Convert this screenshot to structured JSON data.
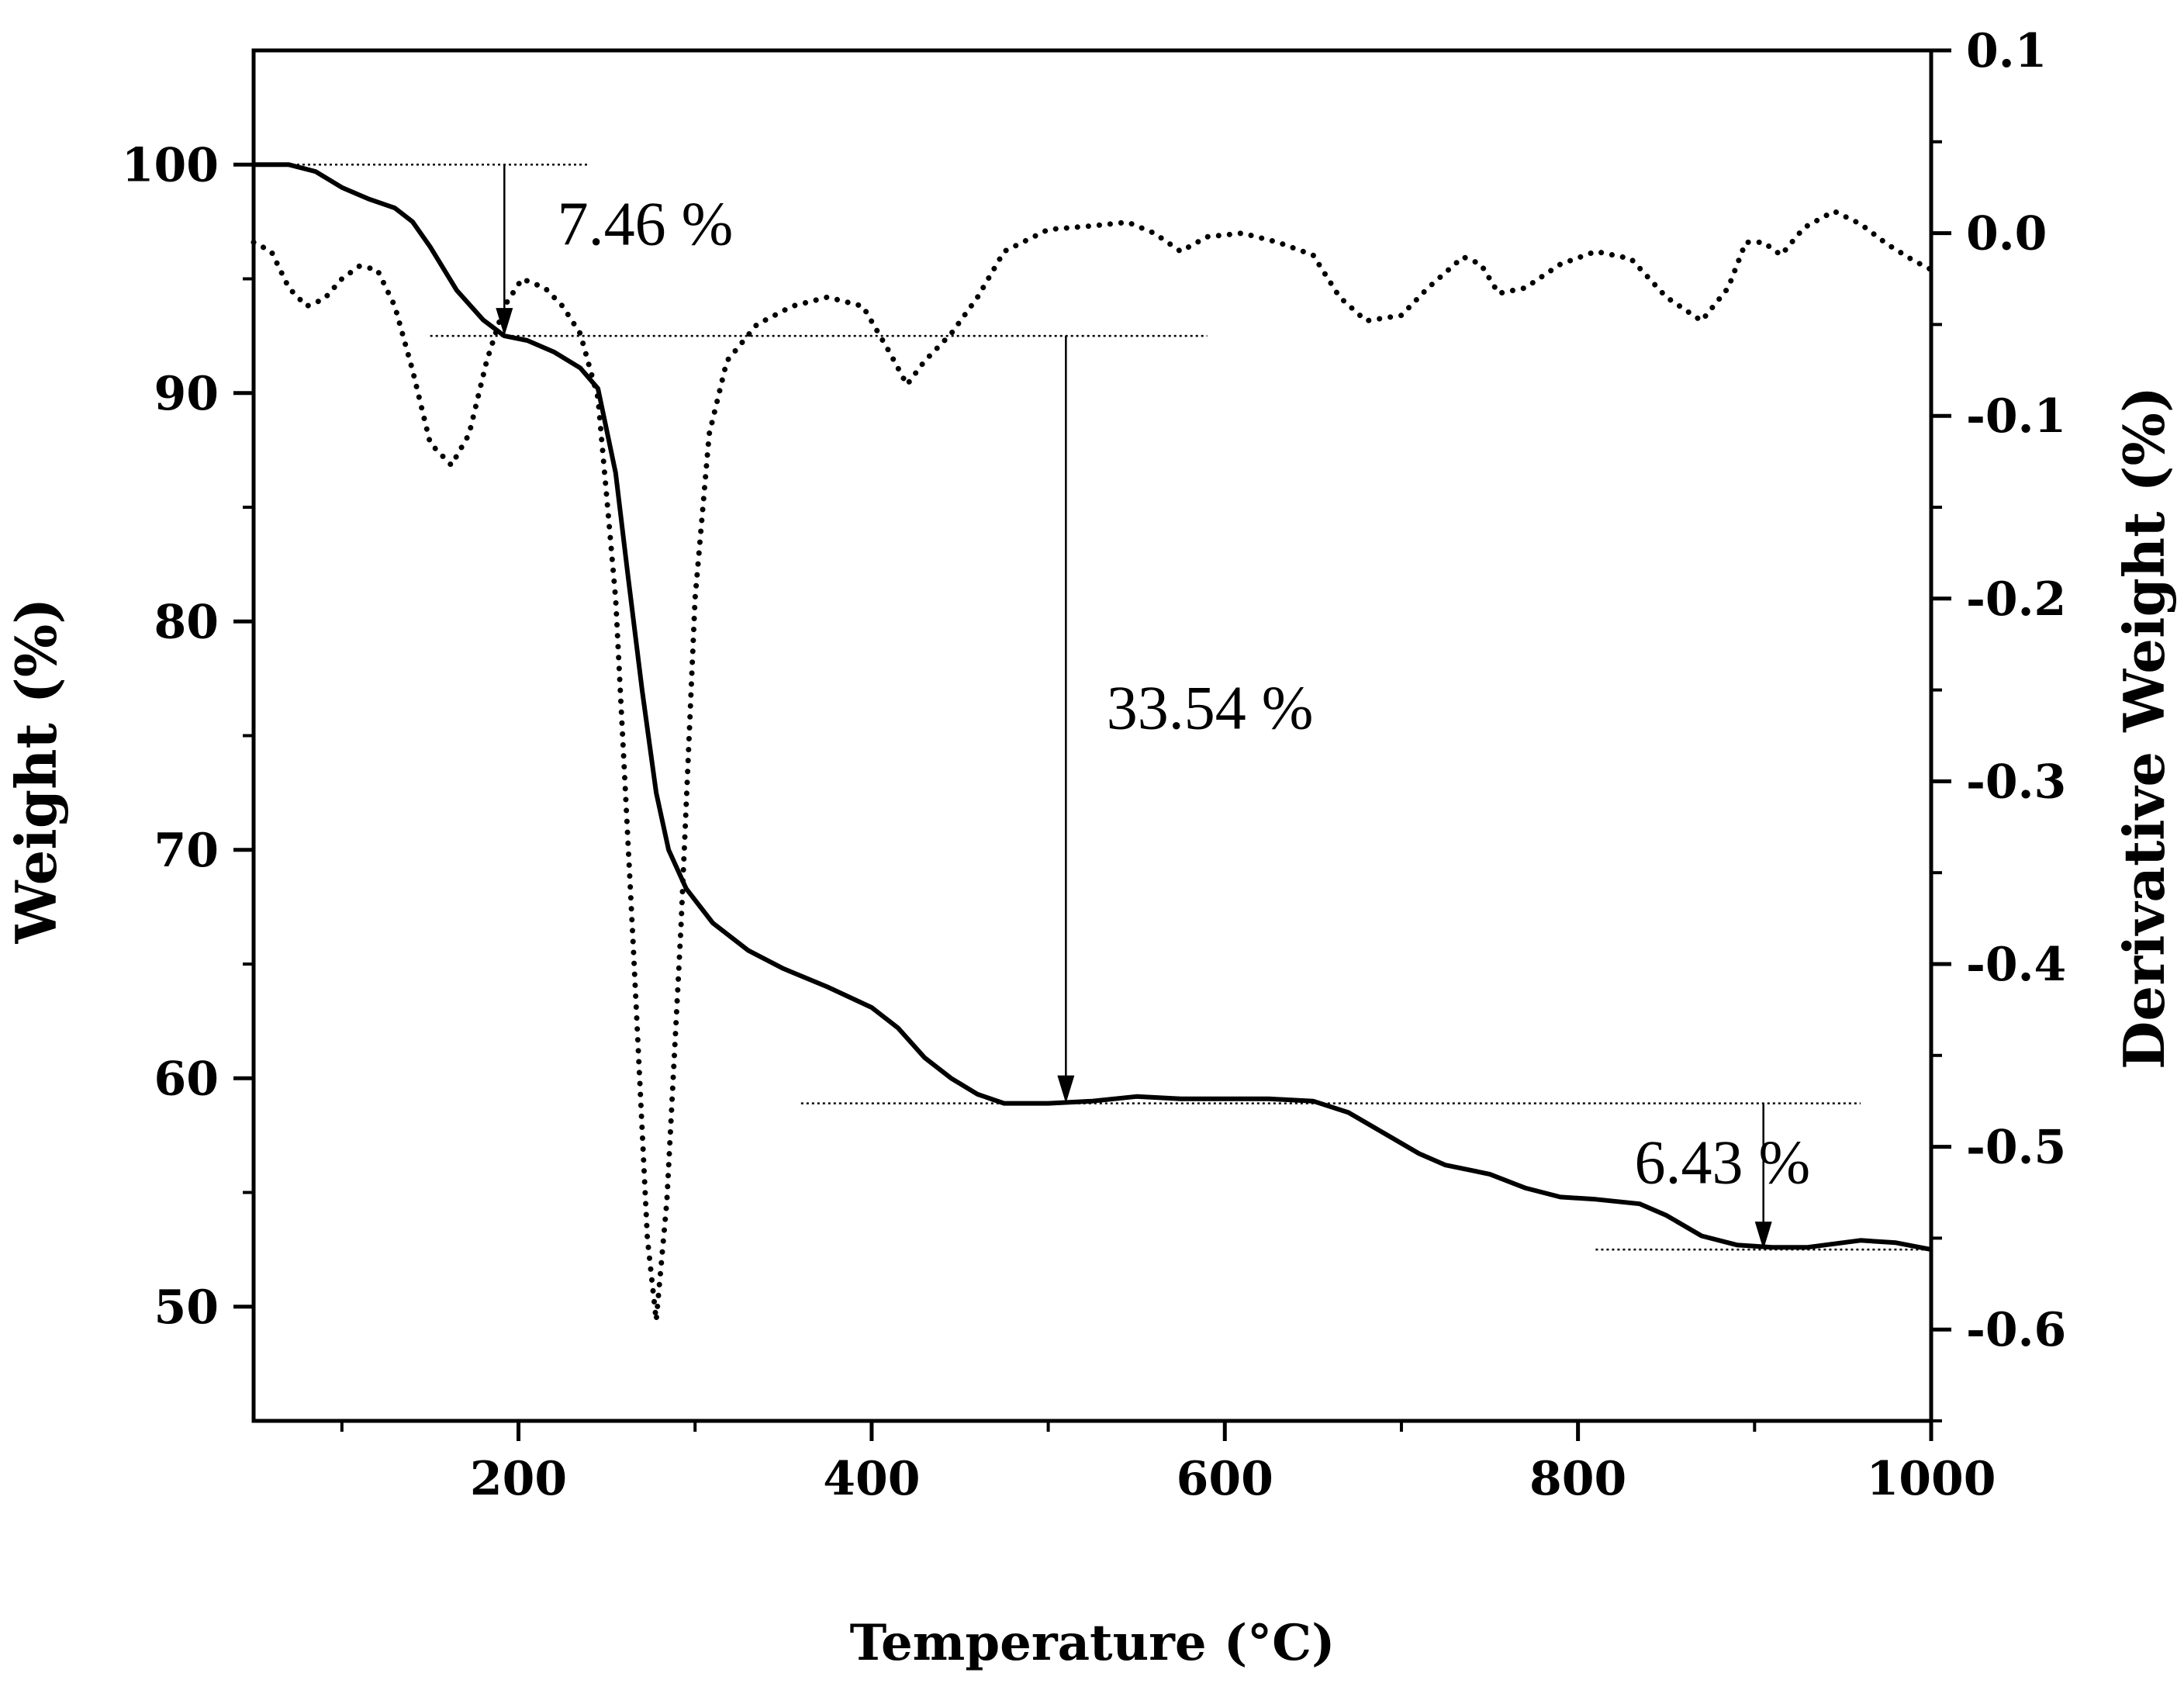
{
  "chart_data": {
    "type": "line",
    "xlabel": "Temperature (°C)",
    "ylabel": "Weight (%)",
    "y2label": "Derivative Weight (%)",
    "xlim": [
      50,
      1000
    ],
    "ylim": [
      45,
      105
    ],
    "y2lim": [
      -0.65,
      0.1
    ],
    "x_ticks": [
      200,
      400,
      600,
      800,
      1000
    ],
    "y_ticks": [
      50,
      60,
      70,
      80,
      90,
      100
    ],
    "y2_ticks": [
      0.1,
      0.0,
      -0.1,
      -0.2,
      -0.3,
      -0.4,
      -0.5,
      -0.6
    ],
    "x_tick_labels": [
      "200",
      "400",
      "600",
      "800",
      "1000"
    ],
    "y_tick_labels": [
      "50",
      "60",
      "70",
      "80",
      "90",
      "100"
    ],
    "y2_tick_labels": [
      "0.1",
      "0.0",
      "-0.1",
      "-0.2",
      "-0.3",
      "-0.4",
      "-0.5",
      "-0.6"
    ],
    "series": [
      {
        "name": "Weight",
        "axis": "left",
        "style": "solid",
        "points": [
          [
            50,
            100
          ],
          [
            70,
            100
          ],
          [
            85,
            99.7
          ],
          [
            100,
            99
          ],
          [
            115,
            98.5
          ],
          [
            130,
            98.1
          ],
          [
            140,
            97.5
          ],
          [
            150,
            96.4
          ],
          [
            165,
            94.5
          ],
          [
            180,
            93.2
          ],
          [
            192,
            92.5
          ],
          [
            205,
            92.3
          ],
          [
            220,
            91.8
          ],
          [
            235,
            91.1
          ],
          [
            245,
            90.2
          ],
          [
            255,
            86.5
          ],
          [
            262,
            82
          ],
          [
            270,
            77
          ],
          [
            278,
            72.5
          ],
          [
            285,
            70
          ],
          [
            295,
            68.3
          ],
          [
            310,
            66.8
          ],
          [
            330,
            65.6
          ],
          [
            350,
            64.8
          ],
          [
            375,
            64
          ],
          [
            400,
            63.1
          ],
          [
            415,
            62.2
          ],
          [
            430,
            60.9
          ],
          [
            445,
            60
          ],
          [
            460,
            59.3
          ],
          [
            475,
            58.9
          ],
          [
            500,
            58.9
          ],
          [
            525,
            59
          ],
          [
            550,
            59.2
          ],
          [
            575,
            59.1
          ],
          [
            600,
            59.1
          ],
          [
            625,
            59.1
          ],
          [
            650,
            59
          ],
          [
            670,
            58.5
          ],
          [
            690,
            57.6
          ],
          [
            710,
            56.7
          ],
          [
            725,
            56.2
          ],
          [
            750,
            55.8
          ],
          [
            770,
            55.2
          ],
          [
            790,
            54.8
          ],
          [
            810,
            54.7
          ],
          [
            835,
            54.5
          ],
          [
            850,
            54
          ],
          [
            870,
            53.1
          ],
          [
            890,
            52.7
          ],
          [
            910,
            52.6
          ],
          [
            930,
            52.6
          ],
          [
            960,
            52.9
          ],
          [
            980,
            52.8
          ],
          [
            1000,
            52.5
          ]
        ]
      },
      {
        "name": "Derivative Weight",
        "axis": "right",
        "style": "dotted",
        "points": [
          [
            50,
            -0.005
          ],
          [
            60,
            -0.01
          ],
          [
            70,
            -0.03
          ],
          [
            80,
            -0.04
          ],
          [
            90,
            -0.036
          ],
          [
            100,
            -0.025
          ],
          [
            110,
            -0.018
          ],
          [
            120,
            -0.02
          ],
          [
            130,
            -0.04
          ],
          [
            140,
            -0.075
          ],
          [
            150,
            -0.115
          ],
          [
            162,
            -0.127
          ],
          [
            172,
            -0.11
          ],
          [
            182,
            -0.07
          ],
          [
            192,
            -0.04
          ],
          [
            202,
            -0.025
          ],
          [
            215,
            -0.03
          ],
          [
            225,
            -0.04
          ],
          [
            235,
            -0.055
          ],
          [
            245,
            -0.09
          ],
          [
            255,
            -0.2
          ],
          [
            265,
            -0.39
          ],
          [
            273,
            -0.55
          ],
          [
            278,
            -0.595
          ],
          [
            284,
            -0.53
          ],
          [
            292,
            -0.38
          ],
          [
            300,
            -0.2
          ],
          [
            308,
            -0.11
          ],
          [
            318,
            -0.07
          ],
          [
            335,
            -0.05
          ],
          [
            355,
            -0.04
          ],
          [
            375,
            -0.035
          ],
          [
            395,
            -0.04
          ],
          [
            410,
            -0.065
          ],
          [
            420,
            -0.083
          ],
          [
            430,
            -0.07
          ],
          [
            445,
            -0.055
          ],
          [
            460,
            -0.035
          ],
          [
            475,
            -0.01
          ],
          [
            500,
            0.002
          ],
          [
            525,
            0.004
          ],
          [
            545,
            0.006
          ],
          [
            560,
            0.0
          ],
          [
            575,
            -0.01
          ],
          [
            590,
            -0.002
          ],
          [
            610,
            0.0
          ],
          [
            630,
            -0.005
          ],
          [
            650,
            -0.012
          ],
          [
            665,
            -0.035
          ],
          [
            680,
            -0.048
          ],
          [
            700,
            -0.045
          ],
          [
            715,
            -0.03
          ],
          [
            735,
            -0.013
          ],
          [
            745,
            -0.017
          ],
          [
            755,
            -0.033
          ],
          [
            770,
            -0.03
          ],
          [
            790,
            -0.017
          ],
          [
            810,
            -0.01
          ],
          [
            830,
            -0.014
          ],
          [
            850,
            -0.035
          ],
          [
            870,
            -0.048
          ],
          [
            885,
            -0.03
          ],
          [
            895,
            -0.005
          ],
          [
            905,
            -0.005
          ],
          [
            915,
            -0.012
          ],
          [
            928,
            0.003
          ],
          [
            945,
            0.012
          ],
          [
            960,
            0.005
          ],
          [
            975,
            -0.006
          ],
          [
            990,
            -0.015
          ],
          [
            1000,
            -0.02
          ]
        ]
      }
    ],
    "reference_lines": [
      {
        "y": 100,
        "x": [
          50,
          240
        ]
      },
      {
        "y": 92.5,
        "x": [
          150,
          590
        ]
      },
      {
        "y": 58.9,
        "x": [
          360,
          960
        ]
      },
      {
        "y": 52.5,
        "x": [
          810,
          1000
        ]
      }
    ],
    "arrows": [
      {
        "x": 192,
        "from": 100,
        "to": 92.5
      },
      {
        "x": 510,
        "from": 92.5,
        "to": 58.9
      },
      {
        "x": 905,
        "from": 58.9,
        "to": 52.5
      }
    ],
    "annotations": [
      {
        "text": "7.46 %",
        "x": 222,
        "y": 96.5
      },
      {
        "text": "33.54 %",
        "x": 533,
        "y": 75.3
      },
      {
        "text": "6.43 %",
        "x": 832,
        "y": 55.4
      }
    ]
  }
}
